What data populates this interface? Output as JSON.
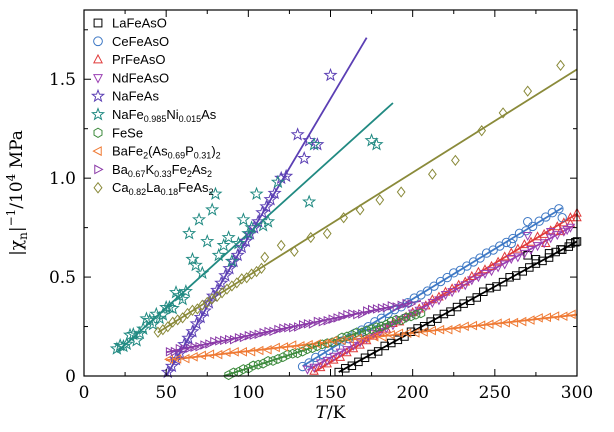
{
  "chart_data": {
    "type": "scatter",
    "xlabel": {
      "var": "T",
      "rest": "/K"
    },
    "ylabel": {
      "pre": "|χ",
      "sub": "n",
      "mid": "|",
      "sup": "−1",
      "post": "/10",
      "sup2": "4",
      "post2": " MPa"
    },
    "xlim": [
      0,
      300
    ],
    "ylim": [
      0,
      1.85
    ],
    "xticks": [
      0,
      50,
      100,
      150,
      200,
      250,
      300
    ],
    "yticks": [
      0,
      0.5,
      1.0,
      1.5
    ],
    "xtick_labels": [
      "0",
      "50",
      "100",
      "150",
      "200",
      "250",
      "300"
    ],
    "ytick_labels": [
      "0",
      "0.5",
      "1.0",
      "1.5"
    ],
    "legend_position": "top-left",
    "series": [
      {
        "name": "LaFeAsO",
        "name_parts": [
          {
            "t": "LaFeAsO"
          }
        ],
        "marker": "square",
        "color": "#000000",
        "fit": [
          [
            155,
            0.02
          ],
          [
            300,
            0.68
          ]
        ],
        "dense": [
          155,
          300,
          4
        ],
        "points": [
          [
            270,
            0.61
          ],
          [
            275,
            0.59
          ],
          [
            283,
            0.62
          ],
          [
            290,
            0.64
          ],
          [
            296,
            0.67
          ],
          [
            300,
            0.68
          ]
        ]
      },
      {
        "name": "CeFeAsO",
        "name_parts": [
          {
            "t": "CeFeAsO"
          }
        ],
        "marker": "circle",
        "color": "#3f79c5",
        "fit": [
          [
            133,
            0.05
          ],
          [
            291,
            0.85
          ]
        ],
        "dense": [
          133,
          291,
          4
        ],
        "points": [
          [
            260,
            0.67
          ],
          [
            270,
            0.78
          ],
          [
            291,
            0.8
          ]
        ]
      },
      {
        "name": "PrFeAsO",
        "name_parts": [
          {
            "t": "PrFeAsO"
          }
        ],
        "marker": "triangle-up",
        "color": "#e03a3a",
        "fit": [
          [
            140,
            0.02
          ],
          [
            300,
            0.82
          ]
        ],
        "dense": [
          140,
          300,
          4
        ],
        "points": [
          [
            281,
            0.67
          ],
          [
            290,
            0.73
          ],
          [
            296,
            0.77
          ],
          [
            300,
            0.8
          ]
        ]
      },
      {
        "name": "NdFeAsO",
        "name_parts": [
          {
            "t": "NdFeAsO"
          }
        ],
        "marker": "triangle-down",
        "color": "#9a3fb2",
        "fit": [
          [
            136,
            0.03
          ],
          [
            298,
            0.76
          ]
        ],
        "dense": [
          136,
          298,
          4
        ],
        "points": [
          [
            270,
            0.71
          ],
          [
            284,
            0.73
          ],
          [
            294,
            0.74
          ]
        ]
      },
      {
        "name": "NaFeAs",
        "name_parts": [
          {
            "t": "NaFeAs"
          }
        ],
        "marker": "star",
        "color": "#5b3fb4",
        "fit": [
          [
            50,
            0.0
          ],
          [
            172,
            1.71
          ]
        ],
        "dense": [
          51,
          118,
          2.5
        ],
        "points": [
          [
            120,
            1.0
          ],
          [
            123,
            1.01
          ],
          [
            130,
            1.22
          ],
          [
            134,
            1.1
          ],
          [
            137,
            1.19
          ],
          [
            142,
            1.17
          ],
          [
            150,
            1.52
          ]
        ]
      },
      {
        "name": "NaFe0.985Ni0.015As",
        "name_parts": [
          {
            "t": "NaFe"
          },
          {
            "s": "0.985"
          },
          {
            "t": "Ni"
          },
          {
            "s": "0.015"
          },
          {
            "t": "As"
          }
        ],
        "marker": "star",
        "color": "#218a82",
        "fit": [
          [
            20,
            0.12
          ],
          [
            188,
            1.38
          ]
        ],
        "dense": [
          20,
          62,
          2
        ],
        "points": [
          [
            64,
            0.72
          ],
          [
            66,
            0.59
          ],
          [
            68,
            0.56
          ],
          [
            70,
            0.79
          ],
          [
            72,
            0.52
          ],
          [
            75,
            0.68
          ],
          [
            78,
            0.84
          ],
          [
            80,
            0.92
          ],
          [
            82,
            0.61
          ],
          [
            85,
            0.66
          ],
          [
            88,
            0.7
          ],
          [
            90,
            0.58
          ],
          [
            94,
            0.67
          ],
          [
            97,
            0.79
          ],
          [
            100,
            0.72
          ],
          [
            102,
            0.75
          ],
          [
            105,
            0.92
          ],
          [
            109,
            0.76
          ],
          [
            112,
            0.78
          ],
          [
            118,
            0.98
          ],
          [
            137,
            0.88
          ],
          [
            140,
            1.17
          ],
          [
            175,
            1.19
          ],
          [
            178,
            1.17
          ]
        ]
      },
      {
        "name": "FeSe",
        "name_parts": [
          {
            "t": "FeSe"
          }
        ],
        "marker": "hexagon",
        "color": "#3c8a3c",
        "fit": [
          [
            85,
            0.0
          ],
          [
            205,
            0.32
          ]
        ],
        "dense": [
          88,
          205,
          3
        ],
        "points": []
      },
      {
        "name": "BaFe2(As0.69P0.31)2",
        "name_parts": [
          {
            "t": "BaFe"
          },
          {
            "s": "2"
          },
          {
            "t": "(As"
          },
          {
            "s": "0.69"
          },
          {
            "t": "P"
          },
          {
            "s": "0.31"
          },
          {
            "t": ")"
          },
          {
            "s": "2"
          }
        ],
        "marker": "triangle-left",
        "color": "#ef7a34",
        "fit": [
          [
            50,
            0.08
          ],
          [
            300,
            0.31
          ]
        ],
        "dense": [
          52,
          300,
          5
        ],
        "points": []
      },
      {
        "name": "Ba0.67K0.33Fe2As2",
        "name_parts": [
          {
            "t": "Ba"
          },
          {
            "s": "0.67"
          },
          {
            "t": "K"
          },
          {
            "s": "0.33"
          },
          {
            "t": "Fe"
          },
          {
            "s": "2"
          },
          {
            "t": "As"
          },
          {
            "s": "2"
          }
        ],
        "marker": "triangle-right",
        "color": "#8b3aa8",
        "fit": [
          [
            50,
            0.12
          ],
          [
            205,
            0.38
          ]
        ],
        "dense": [
          52,
          200,
          3
        ],
        "points": []
      },
      {
        "name": "Ca0.82La0.18FeAs2",
        "name_parts": [
          {
            "t": "Ca"
          },
          {
            "s": "0.82"
          },
          {
            "t": "La"
          },
          {
            "s": "0.18"
          },
          {
            "t": "FeAs"
          },
          {
            "s": "2"
          }
        ],
        "marker": "diamond",
        "color": "#8a8a3a",
        "fit": [
          [
            45,
            0.22
          ],
          [
            300,
            1.55
          ]
        ],
        "dense": [
          45,
          110,
          3
        ],
        "points": [
          [
            110,
            0.6
          ],
          [
            120,
            0.66
          ],
          [
            128,
            0.63
          ],
          [
            138,
            0.7
          ],
          [
            148,
            0.72
          ],
          [
            158,
            0.8
          ],
          [
            168,
            0.84
          ],
          [
            180,
            0.89
          ],
          [
            193,
            0.93
          ],
          [
            212,
            1.02
          ],
          [
            226,
            1.09
          ],
          [
            242,
            1.24
          ],
          [
            255,
            1.33
          ],
          [
            270,
            1.44
          ],
          [
            290,
            1.57
          ]
        ]
      }
    ]
  }
}
